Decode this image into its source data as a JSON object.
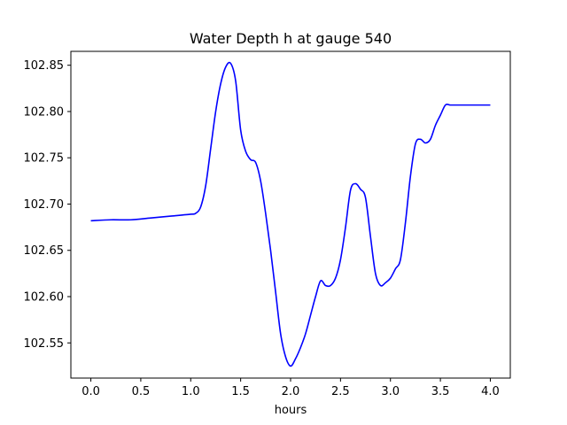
{
  "chart_data": {
    "type": "line",
    "title": "Water Depth h at gauge 540",
    "xlabel": "hours",
    "ylabel": "",
    "xlim": [
      -0.2,
      4.2
    ],
    "ylim": [
      102.512,
      102.865
    ],
    "xticks": [
      0.0,
      0.5,
      1.0,
      1.5,
      2.0,
      2.5,
      3.0,
      3.5,
      4.0
    ],
    "xtick_labels": [
      "0.0",
      "0.5",
      "1.0",
      "1.5",
      "2.0",
      "2.5",
      "3.0",
      "3.5",
      "4.0"
    ],
    "yticks": [
      102.55,
      102.6,
      102.65,
      102.7,
      102.75,
      102.8,
      102.85
    ],
    "ytick_labels": [
      "102.55",
      "102.60",
      "102.65",
      "102.70",
      "102.75",
      "102.80",
      "102.85"
    ],
    "grid": false,
    "series": [
      {
        "color": "#0000ff",
        "x": [
          0.0,
          0.2,
          0.4,
          0.6,
          0.8,
          1.0,
          1.05,
          1.1,
          1.15,
          1.2,
          1.25,
          1.3,
          1.35,
          1.4,
          1.45,
          1.5,
          1.55,
          1.6,
          1.65,
          1.7,
          1.75,
          1.8,
          1.85,
          1.9,
          1.95,
          2.0,
          2.05,
          2.1,
          2.15,
          2.2,
          2.25,
          2.3,
          2.35,
          2.4,
          2.45,
          2.5,
          2.55,
          2.6,
          2.65,
          2.7,
          2.75,
          2.8,
          2.85,
          2.9,
          2.95,
          3.0,
          3.05,
          3.1,
          3.15,
          3.2,
          3.25,
          3.3,
          3.35,
          3.4,
          3.45,
          3.5,
          3.55,
          3.6,
          3.65,
          3.7,
          3.75,
          3.8,
          3.85,
          3.9,
          3.95,
          4.0
        ],
        "y": [
          102.682,
          102.683,
          102.683,
          102.685,
          102.687,
          102.689,
          102.69,
          102.697,
          102.72,
          102.76,
          102.8,
          102.83,
          102.848,
          102.852,
          102.833,
          102.78,
          102.757,
          102.748,
          102.745,
          102.725,
          102.69,
          102.65,
          102.605,
          102.56,
          102.535,
          102.525,
          102.533,
          102.545,
          102.56,
          102.58,
          102.6,
          102.617,
          102.612,
          102.612,
          102.62,
          102.64,
          102.675,
          102.715,
          102.722,
          102.716,
          102.707,
          102.665,
          102.625,
          102.612,
          102.615,
          102.62,
          102.63,
          102.64,
          102.68,
          102.73,
          102.765,
          102.77,
          102.766,
          102.77,
          102.785,
          102.796,
          102.807,
          102.807,
          102.807,
          102.807,
          102.807,
          102.807,
          102.807,
          102.807,
          102.807,
          102.807
        ]
      }
    ]
  }
}
